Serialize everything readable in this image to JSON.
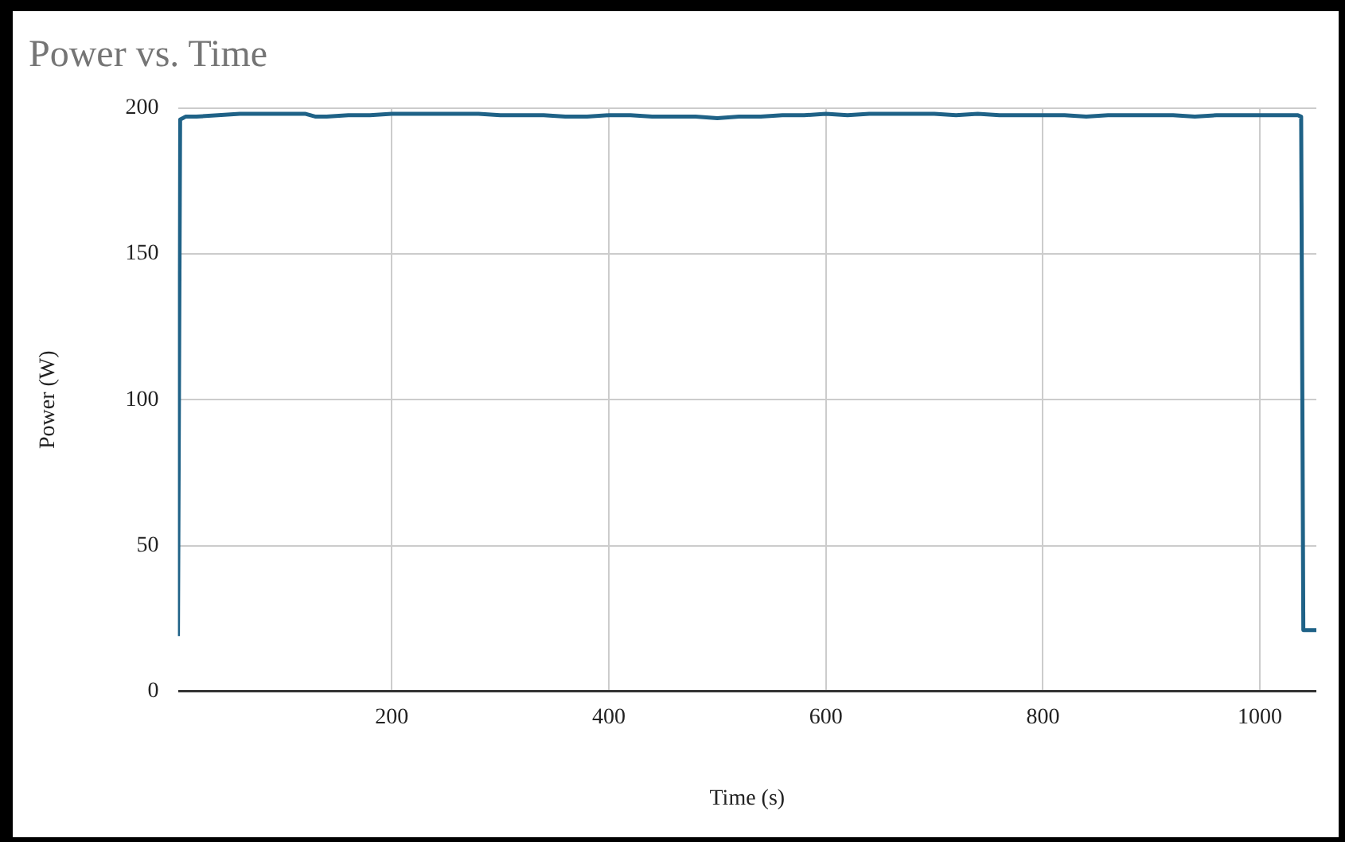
{
  "chart_data": {
    "type": "line",
    "title": "Power vs. Time",
    "xlabel": "Time (s)",
    "ylabel": "Power (W)",
    "series": [
      {
        "color": "#1f6287",
        "x": [
          3,
          5,
          10,
          20,
          40,
          60,
          80,
          100,
          120,
          130,
          140,
          160,
          180,
          200,
          220,
          240,
          260,
          280,
          300,
          320,
          340,
          360,
          380,
          400,
          420,
          440,
          460,
          480,
          500,
          520,
          540,
          560,
          580,
          600,
          620,
          640,
          660,
          680,
          700,
          720,
          740,
          760,
          780,
          800,
          820,
          840,
          860,
          880,
          900,
          920,
          940,
          960,
          980,
          1000,
          1020,
          1035,
          1038,
          1040,
          1052
        ],
        "values": [
          19,
          196,
          197,
          197,
          197.5,
          198,
          198,
          198,
          198,
          197,
          197,
          197.5,
          197.5,
          198,
          198,
          198,
          198,
          198,
          197.5,
          197.5,
          197.5,
          197,
          197,
          197.5,
          197.5,
          197,
          197,
          197,
          196.5,
          197,
          197,
          197.5,
          197.5,
          198,
          197.5,
          198,
          198,
          198,
          198,
          197.5,
          198,
          197.5,
          197.5,
          197.5,
          197.5,
          197,
          197.5,
          197.5,
          197.5,
          197.5,
          197,
          197.5,
          197.5,
          197.5,
          197.5,
          197.5,
          197,
          21,
          21
        ]
      }
    ],
    "xlim": [
      3,
      1052
    ],
    "xticks": [
      200,
      400,
      600,
      800,
      1000
    ],
    "ylim": [
      0,
      200
    ],
    "yticks": [
      0,
      50,
      100,
      150,
      200
    ],
    "grid": true,
    "legend": false,
    "marker": "none",
    "line_style": "solid"
  }
}
